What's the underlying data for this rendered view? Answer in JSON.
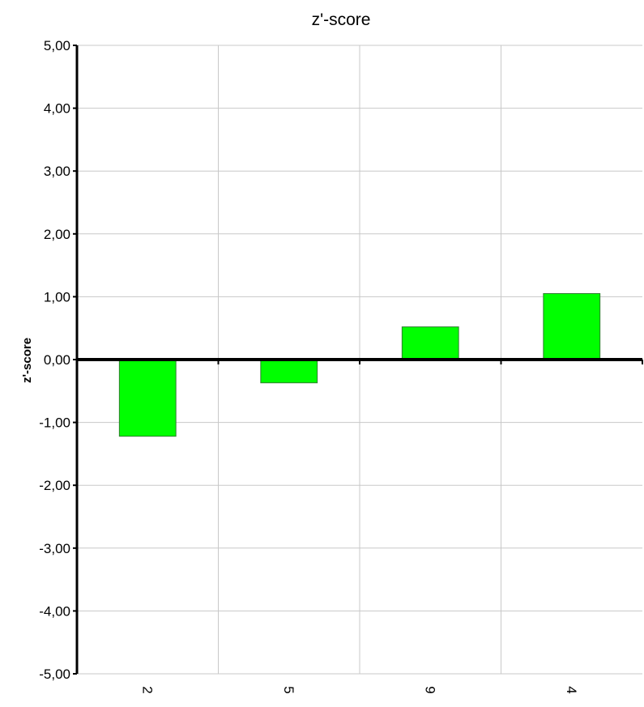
{
  "chart_data": {
    "type": "bar",
    "title": "z'-score",
    "xlabel": "",
    "ylabel": "z'-score",
    "categories": [
      "2",
      "5",
      "9",
      "4"
    ],
    "values": [
      -1.22,
      -0.37,
      0.52,
      1.05
    ],
    "ylim": [
      -5,
      5
    ],
    "yticks": [
      5,
      4,
      3,
      2,
      1,
      0,
      -1,
      -2,
      -3,
      -4,
      -5
    ],
    "ytick_labels": [
      "5,00",
      "4,00",
      "3,00",
      "2,00",
      "1,00",
      "0,00",
      "-1,00",
      "-2,00",
      "-3,00",
      "-4,00",
      "-5,00"
    ],
    "grid": true,
    "bar_color": "#00ff00",
    "bar_edge_color": "#2e7d2e",
    "grid_color": "#c8c8c8",
    "axis_color": "#000000"
  }
}
